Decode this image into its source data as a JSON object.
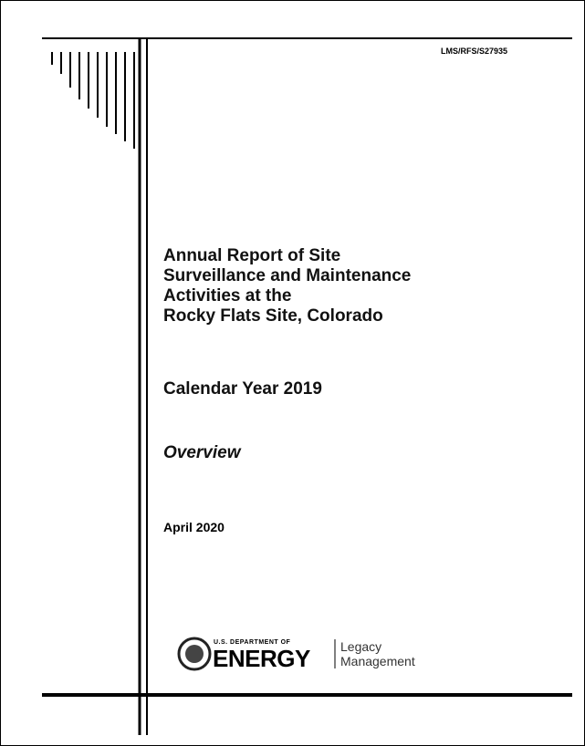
{
  "document_id": "LMS/RFS/S27935",
  "title_lines": [
    "Annual Report of Site",
    "Surveillance and Maintenance",
    "Activities at the",
    "Rocky Flats Site, Colorado"
  ],
  "subtitle": "Calendar Year 2019",
  "section": "Overview",
  "date": "April 2020",
  "logo": {
    "agency_top": "U.S. DEPARTMENT OF",
    "agency": "ENERGY",
    "office_lines": [
      "Legacy",
      "Management"
    ]
  }
}
